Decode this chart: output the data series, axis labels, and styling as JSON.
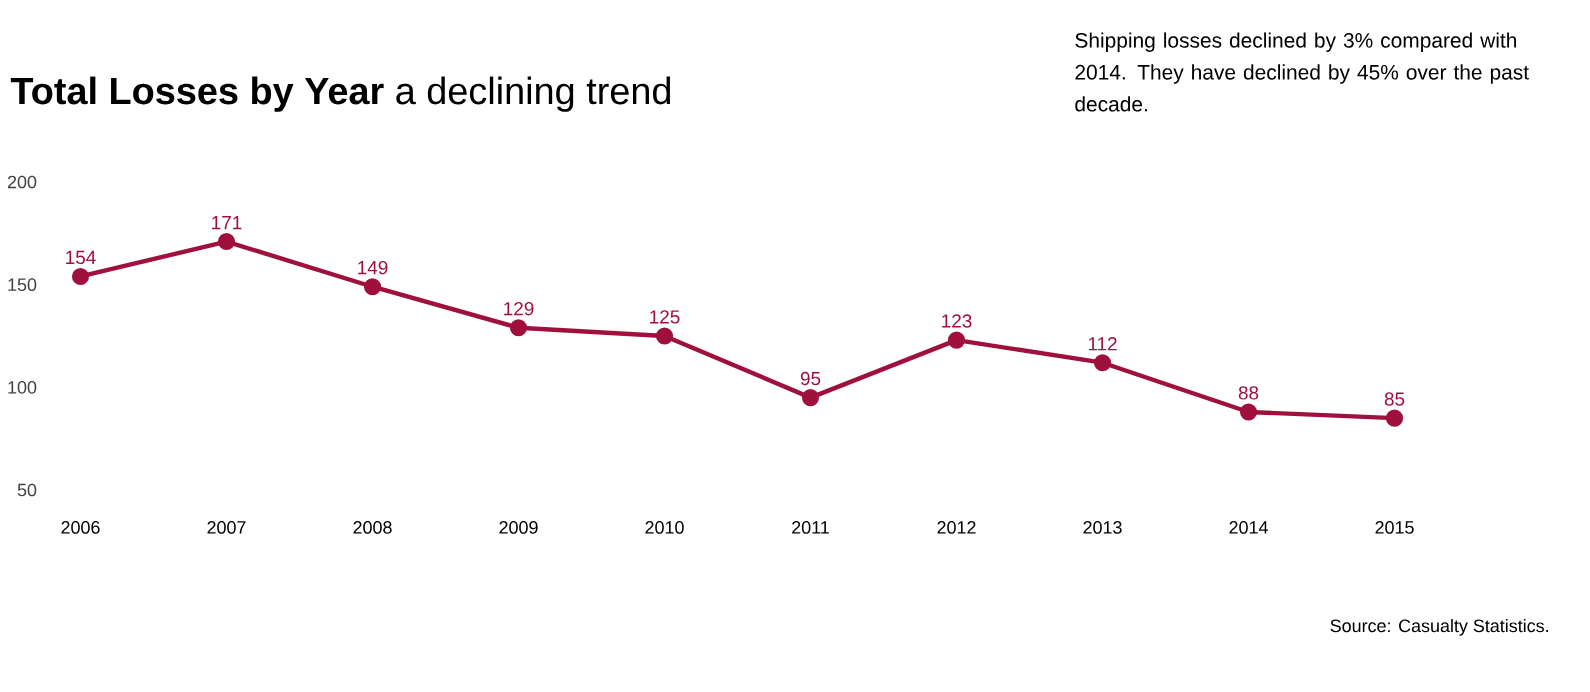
{
  "chart_data": {
    "type": "line",
    "title": "**Total Losses by Year** a declining trend",
    "categories": [
      "2006",
      "2007",
      "2008",
      "2009",
      "2010",
      "2011",
      "2012",
      "2013",
      "2014",
      "2015"
    ],
    "values": [
      154,
      171,
      149,
      129,
      125,
      95,
      123,
      112,
      88,
      85
    ],
    "color": "#a0103c",
    "marker": "circle",
    "line_style": "solid",
    "data_labels": true,
    "ylim": [
      50,
      200
    ],
    "yticks": [
      50,
      100,
      150,
      200
    ],
    "annotations": [
      "Shipping losses declined by 3% compared with 2014. They have declined by 45% over the past decade.",
      "Source: Casualty Statistics."
    ]
  }
}
